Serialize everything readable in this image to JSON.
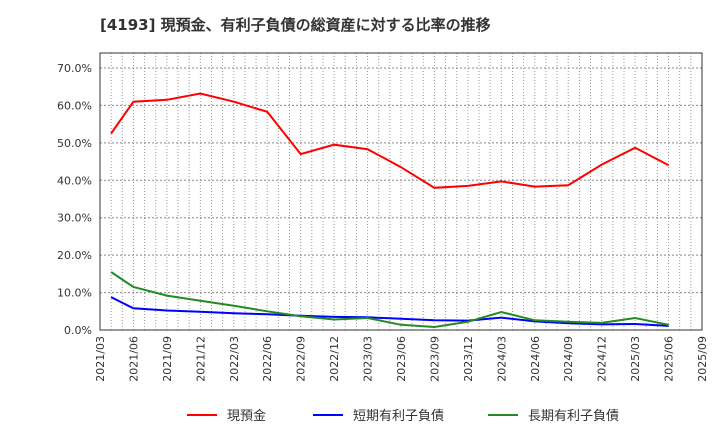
{
  "chart_data": {
    "type": "line",
    "title": "[4193]  現預金、有利子負債の総資産に対する比率の推移",
    "xlabel": "",
    "ylabel": "",
    "ylim": [
      0,
      70
    ],
    "yticks": [
      "0.0%",
      "10.0%",
      "20.0%",
      "30.0%",
      "40.0%",
      "50.0%",
      "60.0%",
      "70.0%"
    ],
    "xticks": [
      "2021/03",
      "2021/06",
      "2021/09",
      "2021/12",
      "2022/03",
      "2022/06",
      "2022/09",
      "2022/12",
      "2023/03",
      "2023/06",
      "2023/09",
      "2023/12",
      "2024/03",
      "2024/06",
      "2024/09",
      "2024/12",
      "2025/03",
      "2025/06",
      "2025/09"
    ],
    "x": [
      "2021/04",
      "2021/06",
      "2021/09",
      "2021/12",
      "2022/03",
      "2022/06",
      "2022/09",
      "2022/12",
      "2023/03",
      "2023/06",
      "2023/09",
      "2023/12",
      "2024/03",
      "2024/06",
      "2024/09",
      "2024/12",
      "2025/03",
      "2025/06"
    ],
    "grid": true,
    "legend_position": "bottom",
    "series": [
      {
        "name": "現預金",
        "color": "#ff0000",
        "values": [
          52.5,
          61.0,
          61.5,
          63.2,
          61.0,
          58.3,
          47.0,
          49.5,
          48.3,
          43.5,
          38.0,
          38.5,
          39.7,
          38.3,
          38.7,
          44.2,
          48.7,
          44.0
        ]
      },
      {
        "name": "短期有利子負債",
        "color": "#0000ff",
        "values": [
          8.8,
          5.8,
          5.2,
          4.9,
          4.5,
          4.2,
          3.8,
          3.5,
          3.4,
          3.0,
          2.6,
          2.5,
          3.3,
          2.3,
          1.8,
          1.5,
          1.6,
          1.1
        ]
      },
      {
        "name": "長期有利子負債",
        "color": "#228b22",
        "values": [
          15.5,
          11.5,
          9.2,
          7.8,
          6.5,
          5.0,
          3.7,
          2.8,
          3.2,
          1.4,
          0.8,
          2.2,
          4.8,
          2.6,
          2.2,
          1.9,
          3.2,
          1.4
        ]
      }
    ]
  }
}
